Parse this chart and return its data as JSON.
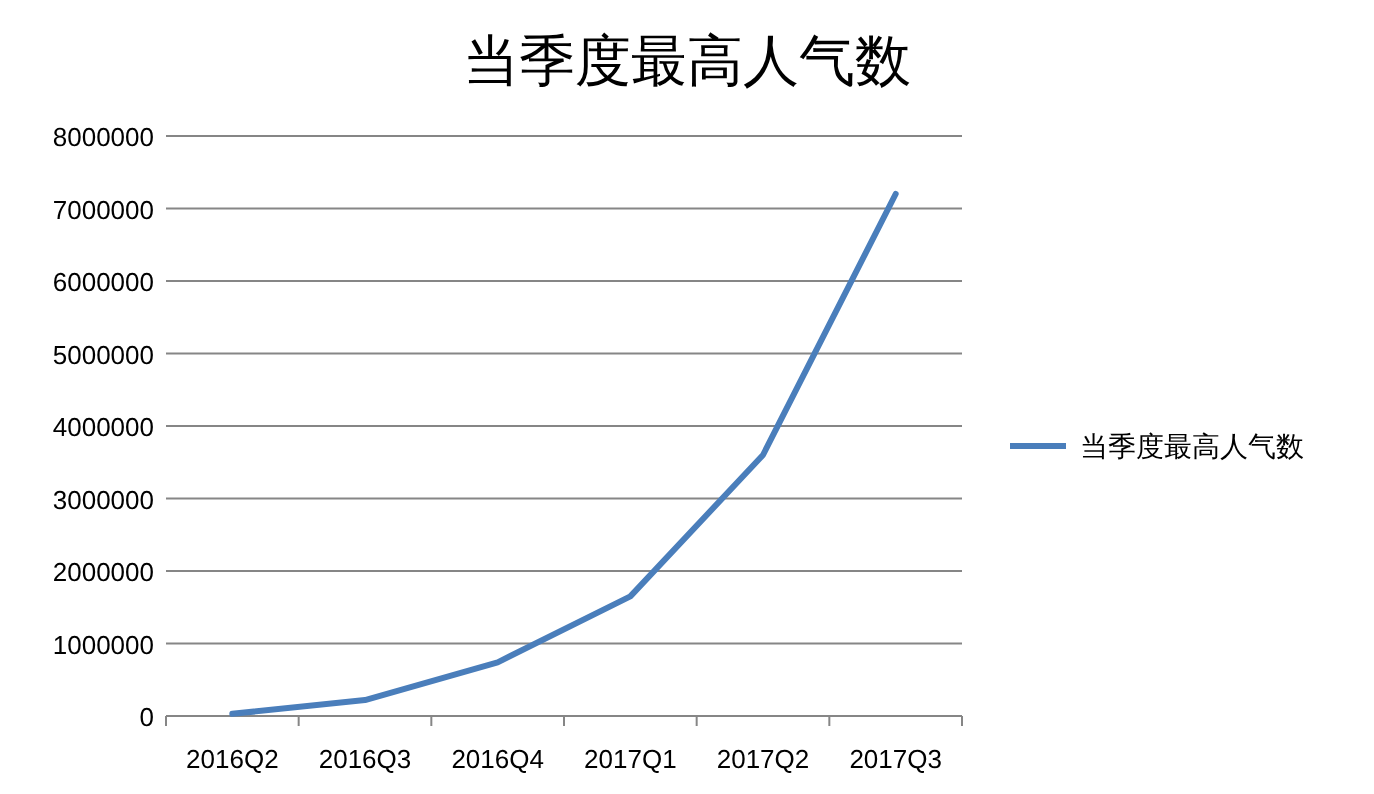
{
  "chart_data": {
    "type": "line",
    "title": "当季度最高人气数",
    "categories": [
      "2016Q2",
      "2016Q3",
      "2016Q4",
      "2017Q1",
      "2017Q2",
      "2017Q3"
    ],
    "series": [
      {
        "name": "当季度最高人气数",
        "color": "#4a7ebb",
        "values": [
          30000,
          220000,
          740000,
          1650000,
          3600000,
          7200000
        ]
      }
    ],
    "ylim": [
      0,
      8000000
    ],
    "yticks": [
      0,
      1000000,
      2000000,
      3000000,
      4000000,
      5000000,
      6000000,
      7000000,
      8000000
    ],
    "grid": "y",
    "legend": "right",
    "marker": "none",
    "line_style": "solid"
  }
}
